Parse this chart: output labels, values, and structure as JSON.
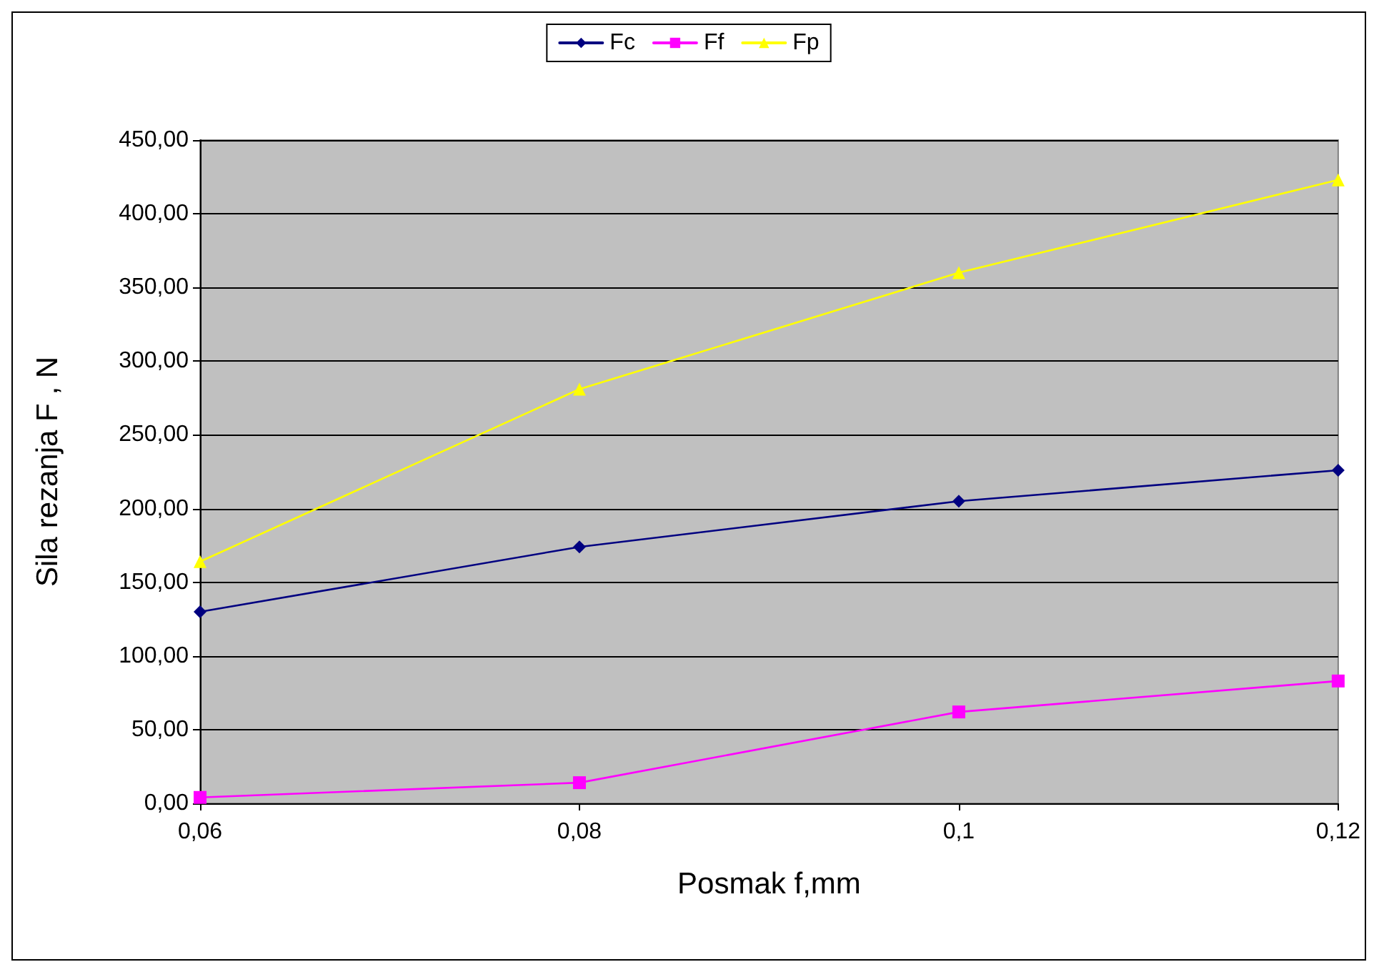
{
  "chart_data": {
    "type": "line",
    "xlabel": "Posmak f,mm",
    "ylabel": "Sila rezanja F , N",
    "categories": [
      "0,06",
      "0,08",
      "0,1",
      "0,12"
    ],
    "series": [
      {
        "name": "Fc",
        "color": "#000080",
        "marker": "diamond",
        "values": [
          130,
          174,
          205,
          226
        ]
      },
      {
        "name": "Ff",
        "color": "#ff00ff",
        "marker": "square",
        "values": [
          4,
          14,
          62,
          83
        ]
      },
      {
        "name": "Fp",
        "color": "#ffff00",
        "marker": "triangle",
        "values": [
          164,
          281,
          360,
          423
        ]
      }
    ],
    "ylim": [
      0,
      450
    ],
    "yticks": [
      {
        "value": 0,
        "label": "0,00"
      },
      {
        "value": 50,
        "label": "50,00"
      },
      {
        "value": 100,
        "label": "100,00"
      },
      {
        "value": 150,
        "label": "150,00"
      },
      {
        "value": 200,
        "label": "200,00"
      },
      {
        "value": 250,
        "label": "250,00"
      },
      {
        "value": 300,
        "label": "300,00"
      },
      {
        "value": 350,
        "label": "350,00"
      },
      {
        "value": 400,
        "label": "400,00"
      },
      {
        "value": 450,
        "label": "450,00"
      }
    ],
    "grid": "y",
    "legend": "top",
    "line_style": "solid"
  }
}
